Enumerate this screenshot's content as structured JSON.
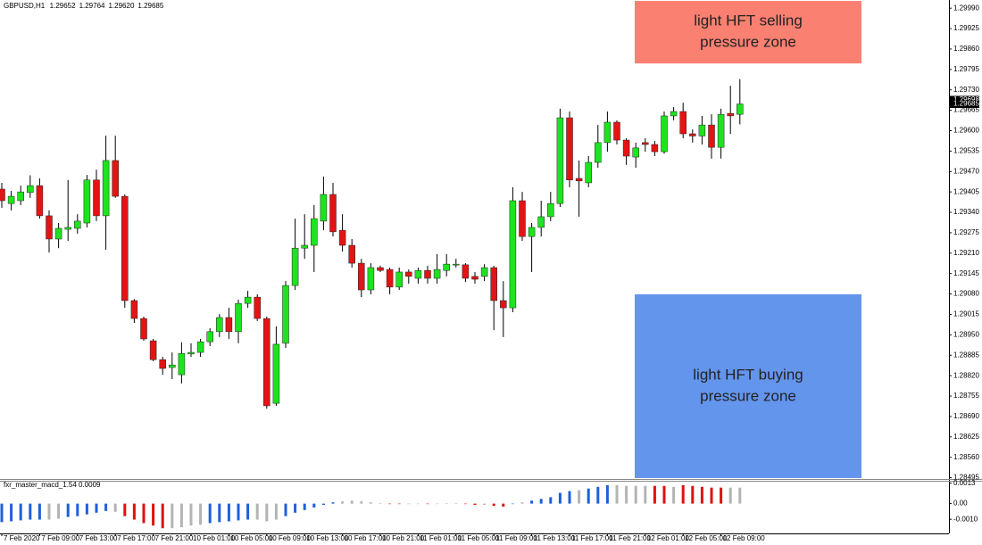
{
  "chart_data": {
    "type": "candlestick",
    "title": "GBPUSD,H1",
    "last_bar_labels": [
      "1.29652",
      "1.29764",
      "1.29620",
      "1.29685"
    ],
    "categories": [
      "7 Feb 2020",
      null,
      null,
      null,
      "7 Feb 09:00",
      null,
      null,
      null,
      "7 Feb 13:00",
      null,
      null,
      null,
      "7 Feb 17:00",
      null,
      null,
      null,
      "7 Feb 21:00",
      null,
      null,
      null,
      "10 Feb 01:00",
      null,
      null,
      null,
      "10 Feb 05:00",
      null,
      null,
      null,
      "10 Feb 09:00",
      null,
      null,
      null,
      "10 Feb 13:00",
      null,
      null,
      null,
      "10 Feb 17:00",
      null,
      null,
      null,
      "10 Feb 21:00",
      null,
      null,
      null,
      "11 Feb 01:00",
      null,
      null,
      null,
      "11 Feb 05:00",
      null,
      null,
      null,
      "11 Feb 09:00",
      null,
      null,
      null,
      "11 Feb 13:00",
      null,
      null,
      null,
      "11 Feb 17:00",
      null,
      null,
      null,
      "11 Feb 21:00",
      null,
      null,
      null,
      "12 Feb 01:00",
      null,
      null,
      null,
      "12 Feb 05:00",
      null,
      null,
      null,
      "12 Feb 09:00",
      null,
      null
    ],
    "open": [
      1.29414,
      1.29368,
      1.29377,
      1.29403,
      1.29425,
      1.29329,
      1.29255,
      1.29286,
      1.29289,
      1.29306,
      1.29443,
      1.29329,
      1.29505,
      1.29391,
      1.29059,
      1.29002,
      1.28931,
      1.28871,
      1.28846,
      1.28823,
      1.28889,
      1.28894,
      1.28928,
      1.2896,
      1.29005,
      1.2896,
      1.2905,
      1.2907,
      1.29002,
      1.28732,
      1.28923,
      1.29107,
      1.29226,
      1.29235,
      1.29312,
      1.29397,
      1.29283,
      1.29235,
      1.29178,
      1.29093,
      1.29164,
      1.29158,
      1.29102,
      1.2915,
      1.2913,
      1.29155,
      1.2913,
      1.29155,
      1.29173,
      1.29173,
      1.29136,
      1.29136,
      1.29164,
      1.29059,
      1.29036,
      1.29377,
      1.29263,
      1.29292,
      1.29326,
      1.29368,
      1.29641,
      1.29448,
      1.29434,
      1.29499,
      1.29562,
      1.29627,
      1.2957,
      1.29516,
      1.29562,
      1.29556,
      1.29533,
      1.29647,
      1.29661,
      1.2959,
      1.29583,
      1.29618,
      1.29547,
      1.29655,
      1.29652
    ],
    "high": [
      1.29434,
      1.29408,
      1.29425,
      1.29458,
      1.29448,
      1.29346,
      1.29306,
      1.29443,
      1.29334,
      1.29459,
      1.29476,
      1.29584,
      1.29584,
      1.29397,
      1.29064,
      1.29008,
      1.28937,
      1.2888,
      1.28894,
      1.28926,
      1.28923,
      1.28937,
      1.28971,
      1.29016,
      1.29036,
      1.29062,
      1.2909,
      1.29079,
      1.29008,
      1.28977,
      1.29121,
      1.2932,
      1.29334,
      1.29363,
      1.29454,
      1.29434,
      1.29334,
      1.29255,
      1.29192,
      1.29178,
      1.2917,
      1.29164,
      1.29164,
      1.29158,
      1.29164,
      1.2917,
      1.29207,
      1.29207,
      1.29192,
      1.29178,
      1.2915,
      1.29175,
      1.2917,
      1.29121,
      1.2942,
      1.29405,
      1.29306,
      1.29377,
      1.29405,
      1.2967,
      1.29661,
      1.29505,
      1.29519,
      1.29618,
      1.29661,
      1.29633,
      1.29576,
      1.29562,
      1.29576,
      1.29567,
      1.29661,
      1.29675,
      1.29689,
      1.29604,
      1.29647,
      1.29652,
      1.2967,
      1.29743,
      1.29764
    ],
    "low": [
      1.29354,
      1.29346,
      1.29363,
      1.29386,
      1.2932,
      1.29212,
      1.29226,
      1.29249,
      1.29272,
      1.29292,
      1.29312,
      1.29221,
      1.29386,
      1.29036,
      1.28988,
      1.28931,
      1.28866,
      1.28823,
      1.28809,
      1.28795,
      1.2888,
      1.2888,
      1.28914,
      1.28943,
      1.28937,
      1.28923,
      1.29036,
      1.28994,
      1.28715,
      1.28724,
      1.28908,
      1.29093,
      1.29192,
      1.2915,
      1.29283,
      1.29263,
      1.29215,
      1.29164,
      1.2907,
      1.29079,
      1.2915,
      1.29079,
      1.29093,
      1.29113,
      1.29113,
      1.29113,
      1.29113,
      1.29136,
      1.29164,
      1.29118,
      1.29113,
      1.29121,
      1.28965,
      1.28943,
      1.29022,
      1.29249,
      1.2915,
      1.29263,
      1.29312,
      1.29357,
      1.2942,
      1.29326,
      1.2942,
      1.29482,
      1.29533,
      1.29556,
      1.29491,
      1.29482,
      1.29533,
      1.29519,
      1.29527,
      1.29633,
      1.29576,
      1.29562,
      1.29556,
      1.29511,
      1.29511,
      1.2959,
      1.2962
    ],
    "close": [
      1.29377,
      1.29391,
      1.29405,
      1.29425,
      1.29329,
      1.29255,
      1.29289,
      1.29292,
      1.29312,
      1.29443,
      1.29329,
      1.29505,
      1.29391,
      1.29059,
      1.29002,
      1.28937,
      1.28871,
      1.28843,
      1.28854,
      1.28891,
      1.28894,
      1.28928,
      1.2896,
      1.29005,
      1.2896,
      1.2905,
      1.2907,
      1.29002,
      1.28724,
      1.2892,
      1.29107,
      1.29226,
      1.29235,
      1.2932,
      1.29397,
      1.29278,
      1.29235,
      1.29178,
      1.29093,
      1.29164,
      1.29155,
      1.29102,
      1.2915,
      1.29136,
      1.29155,
      1.2913,
      1.29158,
      1.29175,
      1.29175,
      1.2913,
      1.29127,
      1.29164,
      1.29059,
      1.29036,
      1.29377,
      1.29263,
      1.29292,
      1.29326,
      1.29368,
      1.29641,
      1.29443,
      1.2944,
      1.29499,
      1.29562,
      1.29627,
      1.2957,
      1.29519,
      1.29545,
      1.29556,
      1.29533,
      1.29647,
      1.29661,
      1.2959,
      1.29583,
      1.29618,
      1.29547,
      1.29652,
      1.29647,
      1.29685
    ],
    "up_color": "#1ee31e",
    "down_color": "#e31414",
    "ylim": [
      1.28491,
      1.30016
    ],
    "yticks": [
      {
        "value": 1.2999,
        "label": "1.29990"
      },
      {
        "value": 1.29925,
        "label": "1.29925"
      },
      {
        "value": 1.2986,
        "label": "1.29860"
      },
      {
        "value": 1.29795,
        "label": "1.29795"
      },
      {
        "value": 1.2973,
        "label": "1.29730"
      },
      {
        "value": 1.29665,
        "label": "1.29665"
      },
      {
        "value": 1.296,
        "label": "1.29600"
      },
      {
        "value": 1.29535,
        "label": "1.29535"
      },
      {
        "value": 1.2947,
        "label": "1.29470"
      },
      {
        "value": 1.29405,
        "label": "1.29405"
      },
      {
        "value": 1.2934,
        "label": "1.29340"
      },
      {
        "value": 1.29275,
        "label": "1.29275"
      },
      {
        "value": 1.2921,
        "label": "1.29210"
      },
      {
        "value": 1.29145,
        "label": "1.29145"
      },
      {
        "value": 1.2908,
        "label": "1.29080"
      },
      {
        "value": 1.29015,
        "label": "1.29015"
      },
      {
        "value": 1.2895,
        "label": "1.28950"
      },
      {
        "value": 1.28885,
        "label": "1.28885"
      },
      {
        "value": 1.2882,
        "label": "1.28820"
      },
      {
        "value": 1.28755,
        "label": "1.28755"
      },
      {
        "value": 1.2869,
        "label": "1.28690"
      },
      {
        "value": 1.28625,
        "label": "1.28625"
      },
      {
        "value": 1.2856,
        "label": "1.28560"
      },
      {
        "value": 1.28495,
        "label": "1.28495"
      }
    ],
    "ask_price": 1.29698,
    "bid_price": 1.29685,
    "zones": [
      {
        "text_lines": [
          "light HFT selling",
          "pressure zone"
        ],
        "y_range": [
          1.29814,
          1.30013
        ],
        "color": "#fa8072"
      },
      {
        "text_lines": [
          "light HFT buying",
          "pressure zone"
        ],
        "y_range": [
          1.28494,
          1.29079
        ],
        "color": "#6495ed"
      }
    ],
    "indicator": {
      "type": "histogram",
      "title": "fxr_master_macd_1.54 0.0009",
      "values": [
        -0.00118,
        -0.00113,
        -0.00107,
        -0.00102,
        -0.00102,
        -0.00102,
        -0.00096,
        -0.00085,
        -0.0008,
        -0.00069,
        -0.00058,
        -0.00047,
        -0.00052,
        -0.0008,
        -0.00102,
        -0.00124,
        -0.0014,
        -0.00157,
        -0.00157,
        -0.00151,
        -0.0014,
        -0.00135,
        -0.00124,
        -0.00118,
        -0.00113,
        -0.00107,
        -0.00102,
        -0.00102,
        -0.00113,
        -0.00102,
        -0.0008,
        -0.00058,
        -0.00041,
        -0.00025,
        -8e-05,
        8e-05,
        0.00014,
        0.00019,
        0.00014,
        8e-05,
        3e-05,
        -3e-05,
        -3e-05,
        -3e-05,
        -3e-05,
        -3e-05,
        -3e-05,
        3e-05,
        3e-05,
        -3e-05,
        -8e-05,
        -8e-05,
        -0.00014,
        -0.00019,
        -3e-05,
        8e-05,
        0.00019,
        0.0003,
        0.00041,
        0.00069,
        0.0008,
        0.00085,
        0.00096,
        0.00107,
        0.00118,
        0.00118,
        0.00113,
        0.00113,
        0.00113,
        0.00113,
        0.00113,
        0.00107,
        0.00118,
        0.00113,
        0.00107,
        0.00102,
        0.00102,
        0.00102,
        0.00102
      ],
      "colors": [
        "#1f5fdc",
        "#1f5fdc",
        "#1f5fdc",
        "#1f5fdc",
        "#1f5fdc",
        "#b4b4b4",
        "#b4b4b4",
        "#1f5fdc",
        "#1f5fdc",
        "#1f5fdc",
        "#1f5fdc",
        "#1f5fdc",
        "#b4b4b4",
        "#e01010",
        "#e01010",
        "#e01010",
        "#e01010",
        "#e01010",
        "#b4b4b4",
        "#b4b4b4",
        "#b4b4b4",
        "#b4b4b4",
        "#1f5fdc",
        "#1f5fdc",
        "#1f5fdc",
        "#1f5fdc",
        "#1f5fdc",
        "#b4b4b4",
        "#b4b4b4",
        "#b4b4b4",
        "#1f5fdc",
        "#1f5fdc",
        "#1f5fdc",
        "#1f5fdc",
        "#1f5fdc",
        "#1f5fdc",
        "#b4b4b4",
        "#b4b4b4",
        "#b4b4b4",
        "#b4b4b4",
        "#b4b4b4",
        "#e01010",
        "#e01010",
        "#b4b4b4",
        "#b4b4b4",
        "#e01010",
        "#b4b4b4",
        "#b4b4b4",
        "#b4b4b4",
        "#e01010",
        "#e01010",
        "#b4b4b4",
        "#e01010",
        "#e01010",
        "#1f5fdc",
        "#b4b4b4",
        "#1f5fdc",
        "#1f5fdc",
        "#1f5fdc",
        "#1f5fdc",
        "#1f5fdc",
        "#b4b4b4",
        "#1f5fdc",
        "#1f5fdc",
        "#1f5fdc",
        "#b4b4b4",
        "#b4b4b4",
        "#b4b4b4",
        "#b4b4b4",
        "#e01010",
        "#e01010",
        "#b4b4b4",
        "#e01010",
        "#e01010",
        "#e01010",
        "#e01010",
        "#e01010",
        "#b4b4b4",
        "#b4b4b4"
      ],
      "ylim": [
        -0.0019,
        0.0014
      ],
      "yticks": [
        0.0013,
        {
          "value": 0,
          "label": "0.00"
        },
        {
          "value": -0.001,
          "label": "-0.0010"
        }
      ]
    }
  }
}
